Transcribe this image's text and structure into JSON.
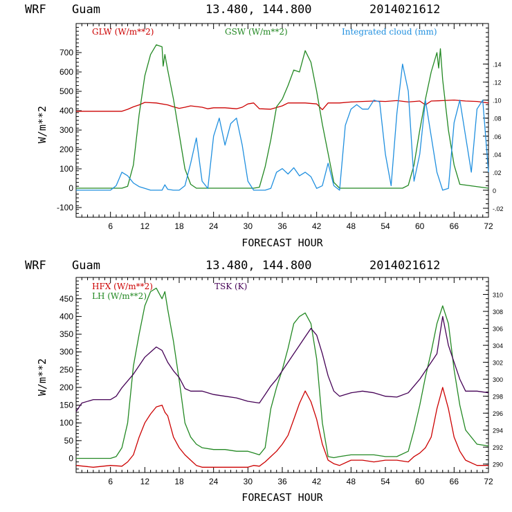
{
  "chart_data": [
    {
      "type": "line",
      "header": {
        "model": "WRF",
        "location": "Guam",
        "coords": "13.480, 144.800",
        "init": "2014021612"
      },
      "xlabel": "FORECAST HOUR",
      "ylabel": "W/m**2",
      "xlim": [
        0,
        72
      ],
      "ylim": [
        -150,
        850
      ],
      "y2lim": [
        -0.03,
        0.185
      ],
      "x_ticks": [
        6,
        12,
        18,
        24,
        30,
        36,
        42,
        48,
        54,
        60,
        66,
        72
      ],
      "y_ticks": [
        -100,
        0,
        100,
        200,
        300,
        400,
        500,
        600,
        700
      ],
      "y2_ticks": [
        -0.02,
        0,
        0.02,
        0.04,
        0.06,
        0.08,
        0.1,
        0.12,
        0.14
      ],
      "y2_tick_labels": [
        "-.02",
        "0",
        ".02",
        ".04",
        ".06",
        ".08",
        ".10",
        ".12",
        ".14"
      ],
      "series": [
        {
          "name": "GLW (W/m**2)",
          "axis": "left",
          "color": "#cc0000",
          "x": [
            0,
            3,
            6,
            8,
            9,
            10,
            11,
            12,
            14,
            16,
            17,
            18,
            19,
            20,
            22,
            23,
            24,
            26,
            28,
            29,
            30,
            31,
            32,
            34,
            36,
            37,
            38,
            40,
            42,
            43,
            44,
            46,
            48,
            50,
            52,
            54,
            56,
            58,
            60,
            61,
            62,
            64,
            66,
            68,
            70,
            72
          ],
          "y": [
            397,
            397,
            397,
            397,
            407,
            420,
            430,
            443,
            440,
            430,
            420,
            412,
            418,
            425,
            418,
            410,
            415,
            415,
            410,
            418,
            435,
            440,
            410,
            408,
            425,
            440,
            440,
            440,
            435,
            405,
            440,
            440,
            445,
            448,
            450,
            448,
            452,
            445,
            450,
            430,
            450,
            452,
            455,
            450,
            448,
            440
          ]
        },
        {
          "name": "GSW (W/m**2)",
          "axis": "left",
          "color": "#228822",
          "x": [
            0,
            8,
            9,
            10,
            11,
            12,
            13,
            14,
            15,
            15.2,
            15.5,
            16,
            17,
            18,
            19,
            20,
            21,
            31,
            32,
            33,
            34,
            35,
            36,
            37,
            38,
            39,
            40,
            41,
            42,
            43,
            44,
            45,
            46,
            57,
            58,
            59,
            60,
            61,
            62,
            63,
            63.3,
            63.6,
            64,
            65,
            66,
            67,
            72
          ],
          "y": [
            0,
            0,
            10,
            120,
            380,
            580,
            690,
            740,
            730,
            630,
            690,
            610,
            460,
            280,
            100,
            20,
            0,
            0,
            5,
            110,
            250,
            420,
            460,
            530,
            610,
            600,
            710,
            650,
            500,
            330,
            180,
            30,
            0,
            0,
            15,
            120,
            300,
            460,
            600,
            700,
            620,
            720,
            560,
            300,
            120,
            20,
            0
          ]
        },
        {
          "name": "Integrated cloud (mm)",
          "axis": "right",
          "color": "#1f8fdf",
          "x": [
            0,
            6,
            7,
            8,
            9,
            10,
            11,
            12,
            13,
            14,
            15,
            15.5,
            16,
            17,
            18,
            19,
            20,
            21,
            22,
            23,
            24,
            25,
            26,
            27,
            28,
            29,
            30,
            31,
            32,
            33,
            34,
            35,
            36,
            37,
            38,
            39,
            40,
            41,
            42,
            43,
            44,
            45,
            46,
            47,
            48,
            49,
            50,
            51,
            52,
            53,
            54,
            55,
            56,
            57,
            58,
            59,
            60,
            61,
            62,
            63,
            64,
            65,
            66,
            67,
            68,
            69,
            70,
            71,
            72
          ],
          "x_note": "data approximated from plot",
          "y": [
            0,
            0,
            0.005,
            0.02,
            0.016,
            0.008,
            0.004,
            0.002,
            0,
            0,
            0,
            0.006,
            0.001,
            0,
            0,
            0.005,
            0.03,
            0.058,
            0.01,
            0.002,
            0.06,
            0.08,
            0.05,
            0.074,
            0.08,
            0.05,
            0.01,
            0.0,
            0.0,
            0.0,
            0.002,
            0.02,
            0.024,
            0.018,
            0.025,
            0.016,
            0.02,
            0.015,
            0.002,
            0.005,
            0.03,
            0.005,
            0.0,
            0.072,
            0.09,
            0.095,
            0.09,
            0.09,
            0.1,
            0.098,
            0.04,
            0.005,
            0.085,
            0.14,
            0.11,
            0.01,
            0.04,
            0.1,
            0.06,
            0.02,
            0.0,
            0.002,
            0.075,
            0.1,
            0.06,
            0.02,
            0.09,
            0.1,
            0.02
          ]
        }
      ]
    },
    {
      "type": "line",
      "header": {
        "model": "WRF",
        "location": "Guam",
        "coords": "13.480, 144.800",
        "init": "2014021612"
      },
      "xlabel": "FORECAST HOUR",
      "ylabel": "W/m**2",
      "xlim": [
        0,
        72
      ],
      "ylim": [
        -40,
        510
      ],
      "y2lim": [
        289,
        312
      ],
      "x_ticks": [
        6,
        12,
        18,
        24,
        30,
        36,
        42,
        48,
        54,
        60,
        66,
        72
      ],
      "y_ticks": [
        0,
        50,
        100,
        150,
        200,
        250,
        300,
        350,
        400,
        450
      ],
      "y2_ticks": [
        290,
        292,
        294,
        296,
        298,
        300,
        302,
        304,
        306,
        308,
        310
      ],
      "series": [
        {
          "name": "HFX (W/m**2)",
          "axis": "left",
          "color": "#cc0000",
          "x": [
            0,
            3,
            6,
            8,
            9,
            10,
            11,
            12,
            13,
            14,
            15,
            15.5,
            16,
            17,
            18,
            19,
            20,
            21,
            22,
            24,
            26,
            28,
            30,
            31,
            32,
            33,
            34,
            35,
            36,
            37,
            38,
            39,
            40,
            41,
            42,
            43,
            44,
            45,
            46,
            48,
            50,
            52,
            54,
            56,
            58,
            59,
            60,
            61,
            62,
            63,
            64,
            65,
            66,
            67,
            68,
            70,
            72
          ],
          "x_note": "data approximated from plot",
          "y": [
            -20,
            -25,
            -20,
            -22,
            -10,
            10,
            60,
            100,
            125,
            145,
            150,
            130,
            120,
            60,
            30,
            10,
            -5,
            -20,
            -25,
            -25,
            -25,
            -25,
            -25,
            -20,
            -22,
            -10,
            5,
            20,
            40,
            65,
            110,
            155,
            190,
            160,
            110,
            40,
            -5,
            -15,
            -20,
            -5,
            -5,
            -10,
            -5,
            -5,
            -10,
            5,
            15,
            30,
            60,
            140,
            200,
            140,
            60,
            20,
            -5,
            -20,
            -20
          ]
        },
        {
          "name": "LH (W/m**2)",
          "axis": "left",
          "color": "#228822",
          "x": [
            0,
            3,
            6,
            7,
            8,
            9,
            10,
            11,
            12,
            13,
            14,
            15,
            15.5,
            16,
            17,
            18,
            19,
            20,
            21,
            22,
            24,
            26,
            28,
            30,
            31,
            32,
            33,
            34,
            35,
            36,
            37,
            38,
            39,
            40,
            41,
            42,
            43,
            44,
            45,
            46,
            48,
            50,
            52,
            54,
            56,
            58,
            59,
            60,
            61,
            62,
            63,
            64,
            65,
            66,
            67,
            68,
            70,
            72
          ],
          "y": [
            0,
            0,
            0,
            5,
            30,
            100,
            260,
            350,
            430,
            470,
            480,
            450,
            470,
            420,
            330,
            220,
            100,
            60,
            40,
            30,
            25,
            25,
            20,
            20,
            15,
            10,
            30,
            140,
            200,
            250,
            310,
            380,
            400,
            410,
            380,
            280,
            100,
            5,
            2,
            5,
            10,
            10,
            10,
            5,
            5,
            20,
            80,
            150,
            230,
            300,
            380,
            430,
            380,
            250,
            150,
            80,
            40,
            35
          ]
        },
        {
          "name": "TSK (K)",
          "axis": "right",
          "color": "#440055",
          "x": [
            0,
            1,
            3,
            6,
            7,
            8,
            9,
            10,
            11,
            12,
            13,
            14,
            15,
            16,
            17,
            18,
            19,
            20,
            22,
            24,
            26,
            28,
            30,
            32,
            33,
            34,
            35,
            36,
            37,
            38,
            39,
            40,
            41,
            42,
            43,
            44,
            45,
            46,
            48,
            50,
            52,
            54,
            56,
            58,
            60,
            61,
            62,
            63,
            64,
            65,
            66,
            67,
            68,
            70,
            72
          ],
          "x_note": "data approximated from plot",
          "y": [
            296.2,
            297.2,
            297.6,
            297.6,
            298.0,
            299.0,
            299.8,
            300.6,
            301.6,
            302.6,
            303.2,
            303.8,
            303.4,
            302.0,
            301.0,
            300.2,
            298.9,
            298.6,
            298.6,
            298.2,
            298.0,
            297.8,
            297.4,
            297.2,
            298.2,
            299.2,
            300.0,
            301.0,
            302.0,
            303.0,
            304.0,
            305.0,
            306.0,
            305.2,
            303.0,
            300.4,
            298.6,
            298.0,
            298.4,
            298.6,
            298.4,
            298.0,
            297.9,
            298.4,
            300.0,
            301.0,
            302.0,
            303.0,
            307.4,
            304.0,
            302.0,
            300.0,
            298.6,
            298.6,
            298.4
          ]
        }
      ]
    }
  ]
}
